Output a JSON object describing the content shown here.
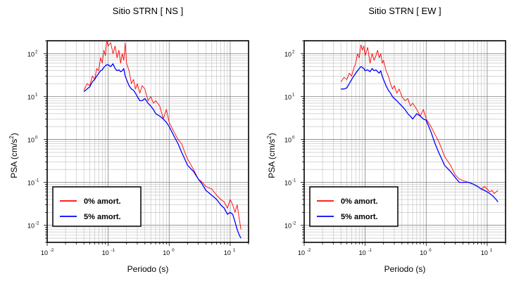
{
  "chart_data": [
    {
      "type": "line",
      "title": "Sitio STRN [ NS ]",
      "xlabel": "Periodo (s)",
      "ylabel_base": "PSA (cm/s",
      "ylabel_sup": "2",
      "ylabel_close": ")",
      "x_scale": "log",
      "y_scale": "log",
      "xlim": [
        0.01,
        20
      ],
      "ylim": [
        0.004,
        200
      ],
      "grid": true,
      "x_ticks": [
        {
          "base": "10",
          "exp": "-2",
          "v": 0.01
        },
        {
          "base": "10",
          "exp": "-1",
          "v": 0.1
        },
        {
          "base": "10",
          "exp": "0",
          "v": 1
        },
        {
          "base": "10",
          "exp": "1",
          "v": 10
        }
      ],
      "y_ticks": [
        {
          "base": "10",
          "exp": "-2",
          "v": 0.01
        },
        {
          "base": "10",
          "exp": "-1",
          "v": 0.1
        },
        {
          "base": "10",
          "exp": "0",
          "v": 1
        },
        {
          "base": "10",
          "exp": "1",
          "v": 10
        },
        {
          "base": "10",
          "exp": "2",
          "v": 100
        }
      ],
      "legend_position": "bottom-left",
      "series": [
        {
          "name": "0% amort.",
          "color": "#ff0000",
          "x": [
            0.04,
            0.045,
            0.05,
            0.055,
            0.06,
            0.065,
            0.07,
            0.075,
            0.08,
            0.085,
            0.09,
            0.095,
            0.1,
            0.11,
            0.12,
            0.13,
            0.14,
            0.15,
            0.16,
            0.17,
            0.18,
            0.19,
            0.2,
            0.22,
            0.24,
            0.26,
            0.28,
            0.3,
            0.33,
            0.36,
            0.4,
            0.45,
            0.5,
            0.55,
            0.6,
            0.7,
            0.8,
            0.9,
            1.0,
            1.2,
            1.4,
            1.6,
            1.8,
            2.0,
            2.5,
            3.0,
            3.5,
            4.0,
            5.0,
            6.0,
            7.0,
            8.0,
            9.0,
            10,
            11,
            12,
            13,
            14,
            15
          ],
          "y": [
            14,
            20,
            18,
            30,
            25,
            45,
            40,
            80,
            60,
            120,
            90,
            200,
            150,
            180,
            100,
            150,
            80,
            120,
            60,
            100,
            70,
            180,
            60,
            40,
            20,
            25,
            15,
            20,
            12,
            18,
            15,
            8,
            10,
            7,
            8,
            6,
            3,
            5,
            2.5,
            1.5,
            1.0,
            0.8,
            0.5,
            0.35,
            0.2,
            0.12,
            0.1,
            0.08,
            0.07,
            0.05,
            0.04,
            0.035,
            0.025,
            0.04,
            0.03,
            0.02,
            0.03,
            0.015,
            0.008
          ]
        },
        {
          "name": "5% amort.",
          "color": "#0000ff",
          "x": [
            0.04,
            0.045,
            0.05,
            0.055,
            0.06,
            0.065,
            0.07,
            0.075,
            0.08,
            0.085,
            0.09,
            0.095,
            0.1,
            0.11,
            0.12,
            0.13,
            0.14,
            0.15,
            0.16,
            0.17,
            0.18,
            0.19,
            0.2,
            0.22,
            0.24,
            0.26,
            0.28,
            0.3,
            0.33,
            0.36,
            0.4,
            0.45,
            0.5,
            0.55,
            0.6,
            0.7,
            0.8,
            0.9,
            1.0,
            1.2,
            1.4,
            1.6,
            1.8,
            2.0,
            2.5,
            3.0,
            3.5,
            4.0,
            5.0,
            6.0,
            7.0,
            8.0,
            9.0,
            10,
            11,
            12,
            13,
            14,
            15
          ],
          "y": [
            13,
            15,
            17,
            22,
            25,
            30,
            35,
            40,
            42,
            48,
            52,
            55,
            55,
            50,
            58,
            45,
            40,
            42,
            38,
            40,
            45,
            30,
            25,
            18,
            15,
            14,
            12,
            10,
            8,
            8,
            9,
            7,
            6,
            5,
            4,
            3.5,
            3,
            2.5,
            2,
            1.2,
            0.8,
            0.5,
            0.35,
            0.25,
            0.18,
            0.12,
            0.09,
            0.065,
            0.05,
            0.04,
            0.03,
            0.025,
            0.018,
            0.02,
            0.018,
            0.012,
            0.008,
            0.006,
            0.005
          ]
        }
      ]
    },
    {
      "type": "line",
      "title": "Sitio STRN [ EW ]",
      "xlabel": "Periodo (s)",
      "ylabel_base": "PSA (cm/s",
      "ylabel_sup": "2",
      "ylabel_close": ")",
      "x_scale": "log",
      "y_scale": "log",
      "xlim": [
        0.01,
        20
      ],
      "ylim": [
        0.004,
        200
      ],
      "grid": true,
      "x_ticks": [
        {
          "base": "10",
          "exp": "-2",
          "v": 0.01
        },
        {
          "base": "10",
          "exp": "-1",
          "v": 0.1
        },
        {
          "base": "10",
          "exp": "0",
          "v": 1
        },
        {
          "base": "10",
          "exp": "1",
          "v": 10
        }
      ],
      "y_ticks": [
        {
          "base": "10",
          "exp": "-2",
          "v": 0.01
        },
        {
          "base": "10",
          "exp": "-1",
          "v": 0.1
        },
        {
          "base": "10",
          "exp": "0",
          "v": 1
        },
        {
          "base": "10",
          "exp": "1",
          "v": 10
        },
        {
          "base": "10",
          "exp": "2",
          "v": 100
        }
      ],
      "legend_position": "bottom-left",
      "series": [
        {
          "name": "0% amort.",
          "color": "#ff0000",
          "x": [
            0.04,
            0.045,
            0.05,
            0.055,
            0.06,
            0.065,
            0.07,
            0.075,
            0.08,
            0.085,
            0.09,
            0.095,
            0.1,
            0.11,
            0.12,
            0.13,
            0.14,
            0.15,
            0.16,
            0.17,
            0.18,
            0.19,
            0.2,
            0.22,
            0.24,
            0.26,
            0.28,
            0.3,
            0.33,
            0.36,
            0.4,
            0.45,
            0.5,
            0.55,
            0.6,
            0.7,
            0.8,
            0.9,
            1.0,
            1.2,
            1.4,
            1.6,
            1.8,
            2.0,
            2.5,
            3.0,
            3.5,
            4.0,
            5.0,
            6.0,
            7.0,
            8.0,
            9.0,
            10,
            11,
            12,
            13,
            14,
            15
          ],
          "y": [
            22,
            28,
            25,
            35,
            30,
            45,
            60,
            100,
            80,
            160,
            120,
            150,
            90,
            140,
            60,
            100,
            70,
            90,
            120,
            80,
            100,
            60,
            70,
            40,
            30,
            20,
            15,
            18,
            12,
            15,
            10,
            8,
            9,
            6,
            7,
            5,
            3.5,
            5,
            3,
            2,
            1.3,
            0.9,
            0.6,
            0.4,
            0.25,
            0.15,
            0.12,
            0.11,
            0.1,
            0.09,
            0.08,
            0.07,
            0.08,
            0.07,
            0.06,
            0.065,
            0.055,
            0.06,
            0.065
          ]
        },
        {
          "name": "5% amort.",
          "color": "#0000ff",
          "x": [
            0.04,
            0.045,
            0.05,
            0.055,
            0.06,
            0.065,
            0.07,
            0.075,
            0.08,
            0.085,
            0.09,
            0.095,
            0.1,
            0.11,
            0.12,
            0.13,
            0.14,
            0.15,
            0.16,
            0.17,
            0.18,
            0.19,
            0.2,
            0.22,
            0.24,
            0.26,
            0.28,
            0.3,
            0.33,
            0.36,
            0.4,
            0.45,
            0.5,
            0.55,
            0.6,
            0.7,
            0.8,
            0.9,
            1.0,
            1.2,
            1.4,
            1.6,
            1.8,
            2.0,
            2.5,
            3.0,
            3.5,
            4.0,
            5.0,
            6.0,
            7.0,
            8.0,
            9.0,
            10,
            11,
            12,
            13,
            14,
            15
          ],
          "y": [
            15,
            15,
            16,
            20,
            25,
            30,
            35,
            40,
            45,
            50,
            48,
            45,
            40,
            42,
            38,
            45,
            40,
            42,
            38,
            35,
            40,
            30,
            25,
            18,
            14,
            12,
            10,
            9,
            8,
            7,
            6,
            5,
            4,
            3.5,
            3,
            4,
            3.5,
            3,
            2.8,
            1.5,
            0.8,
            0.5,
            0.35,
            0.25,
            0.18,
            0.13,
            0.1,
            0.1,
            0.1,
            0.09,
            0.08,
            0.07,
            0.065,
            0.06,
            0.055,
            0.05,
            0.045,
            0.04,
            0.035
          ]
        }
      ]
    }
  ]
}
